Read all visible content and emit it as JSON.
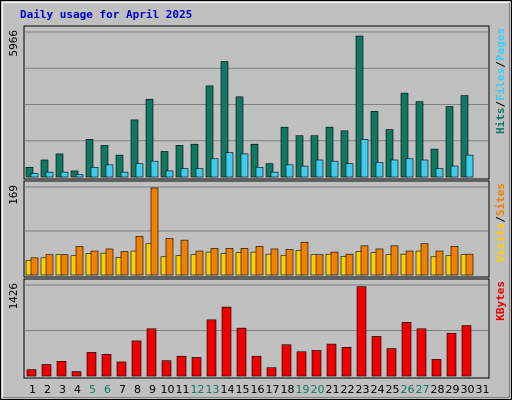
{
  "title": "Daily usage for April 2025",
  "colors": {
    "hits": "#107860",
    "files": "#40ccf0",
    "pages": "#40ccf0",
    "visits": "#ffd000",
    "sites": "#f08000",
    "kbytes": "#ee0000",
    "weekend_label": "#107860",
    "weekday_label": "#000000",
    "panel_bg": "#c0c0c0"
  },
  "chart_data": [
    {
      "type": "bar",
      "panel": "hits-files-pages",
      "y_max_label": "5966",
      "ylim": [
        0,
        5966
      ],
      "legend": [
        "Pages",
        "Files",
        "Hits"
      ],
      "categories": [
        "1",
        "2",
        "3",
        "4",
        "5",
        "6",
        "7",
        "8",
        "9",
        "10",
        "11",
        "12",
        "13",
        "14",
        "15",
        "16",
        "17",
        "18",
        "19",
        "20",
        "21",
        "22",
        "23",
        "24",
        "25",
        "26",
        "27",
        "28",
        "29",
        "30",
        "31"
      ],
      "series": [
        {
          "name": "Hits",
          "values": [
            400,
            700,
            950,
            250,
            1550,
            1300,
            900,
            2350,
            3200,
            1050,
            1300,
            1350,
            3750,
            4750,
            3300,
            1350,
            550,
            2050,
            1700,
            1700,
            2050,
            1900,
            5800,
            2700,
            1950,
            3450,
            3100,
            1150,
            2900,
            3350,
            0
          ]
        },
        {
          "name": "Files",
          "values": [
            150,
            200,
            200,
            100,
            400,
            500,
            200,
            550,
            650,
            250,
            350,
            350,
            750,
            1000,
            950,
            400,
            200,
            500,
            450,
            700,
            650,
            550,
            1550,
            600,
            700,
            750,
            700,
            350,
            450,
            900,
            0
          ]
        },
        {
          "name": "Pages",
          "values": [
            0,
            0,
            0,
            0,
            0,
            0,
            0,
            0,
            0,
            0,
            0,
            0,
            0,
            0,
            0,
            0,
            0,
            0,
            0,
            0,
            0,
            0,
            0,
            0,
            0,
            0,
            0,
            0,
            0,
            0,
            0
          ]
        }
      ]
    },
    {
      "type": "bar",
      "panel": "visits-sites",
      "y_max_label": "169",
      "ylim": [
        0,
        169
      ],
      "legend": [
        "Sites",
        "Visits"
      ],
      "categories": [
        "1",
        "2",
        "3",
        "4",
        "5",
        "6",
        "7",
        "8",
        "9",
        "10",
        "11",
        "12",
        "13",
        "14",
        "15",
        "16",
        "17",
        "18",
        "19",
        "20",
        "21",
        "22",
        "23",
        "24",
        "25",
        "26",
        "27",
        "28",
        "29",
        "30",
        "31"
      ],
      "series": [
        {
          "name": "Visits",
          "values": [
            28,
            33,
            39,
            37,
            41,
            42,
            34,
            46,
            60,
            35,
            37,
            39,
            44,
            41,
            43,
            44,
            40,
            38,
            47,
            39,
            40,
            36,
            45,
            43,
            39,
            40,
            46,
            35,
            37,
            39,
            0
          ]
        },
        {
          "name": "Sites",
          "values": [
            33,
            39,
            39,
            55,
            46,
            50,
            45,
            74,
            167,
            70,
            67,
            46,
            51,
            51,
            51,
            55,
            50,
            49,
            63,
            39,
            44,
            40,
            56,
            50,
            56,
            46,
            60,
            46,
            55,
            40,
            0
          ]
        }
      ]
    },
    {
      "type": "bar",
      "panel": "kbytes",
      "y_max_label": "1426",
      "ylim": [
        0,
        1426
      ],
      "legend": [
        "KBytes"
      ],
      "categories": [
        "1",
        "2",
        "3",
        "4",
        "5",
        "6",
        "7",
        "8",
        "9",
        "10",
        "11",
        "12",
        "13",
        "14",
        "15",
        "16",
        "17",
        "18",
        "19",
        "20",
        "21",
        "22",
        "23",
        "24",
        "25",
        "26",
        "27",
        "28",
        "29",
        "30",
        "31"
      ],
      "series": [
        {
          "name": "KBytes",
          "values": [
            100,
            180,
            230,
            70,
            370,
            340,
            220,
            550,
            740,
            240,
            310,
            290,
            880,
            1080,
            750,
            310,
            130,
            490,
            380,
            400,
            500,
            450,
            1400,
            620,
            430,
            840,
            740,
            260,
            670,
            790,
            0
          ]
        }
      ]
    }
  ],
  "x_axis": {
    "labels": [
      "1",
      "2",
      "3",
      "4",
      "5",
      "6",
      "7",
      "8",
      "9",
      "10",
      "11",
      "12",
      "13",
      "14",
      "15",
      "16",
      "17",
      "18",
      "19",
      "20",
      "21",
      "22",
      "23",
      "24",
      "25",
      "26",
      "27",
      "28",
      "29",
      "30",
      "31"
    ],
    "weekend_days": [
      "5",
      "6",
      "12",
      "13",
      "19",
      "20",
      "26",
      "27"
    ]
  }
}
